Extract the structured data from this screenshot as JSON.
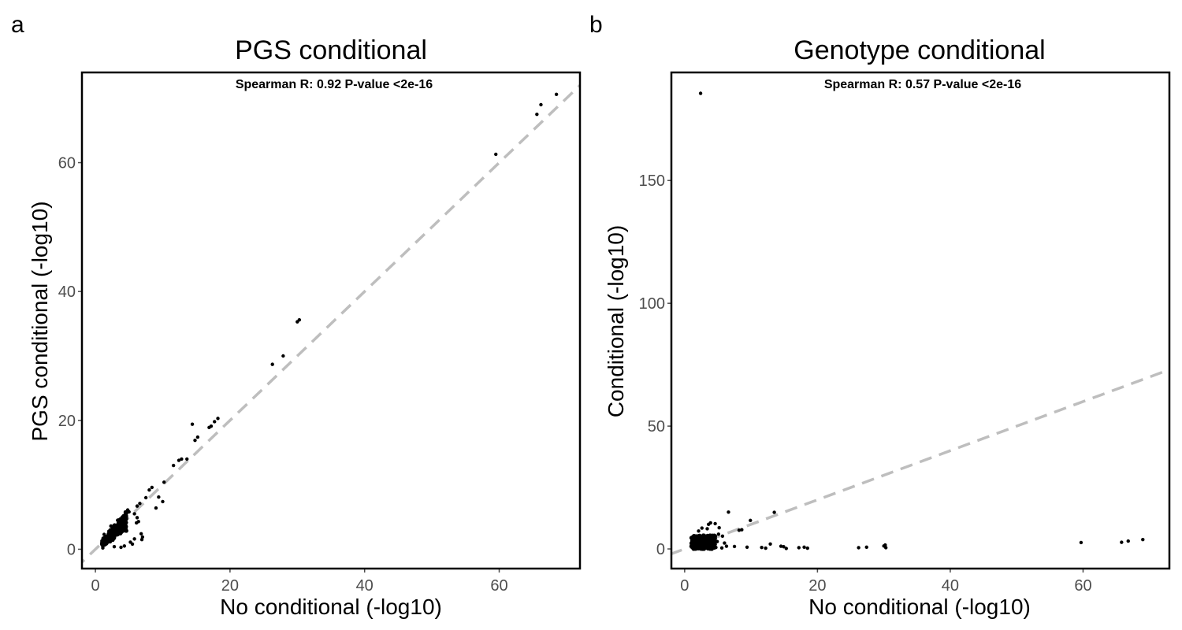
{
  "panels": [
    {
      "letter": "a",
      "title": "PGS conditional",
      "annotation": "Spearman R: 0.92 P-value <2e-16",
      "xlabel": "No conditional (-log10)",
      "ylabel": "PGS conditional (-log10)"
    },
    {
      "letter": "b",
      "title": "Genotype conditional",
      "annotation": "Spearman R: 0.57 P-value <2e-16",
      "xlabel": "No conditional (-log10)",
      "ylabel": "Conditional (-log10)"
    }
  ],
  "chart_data": [
    {
      "type": "scatter",
      "title": "PGS conditional",
      "xlabel": "No conditional (-log10)",
      "ylabel": "PGS conditional (-log10)",
      "xlim": [
        -2,
        72
      ],
      "ylim": [
        -3,
        74
      ],
      "xticks": [
        0,
        20,
        40,
        60
      ],
      "yticks": [
        0,
        20,
        40,
        60
      ],
      "grid": false,
      "reference_line": "y = x (dashed, gray)",
      "annotation": "Spearman R: 0.92 P-value <2e-16",
      "points": [
        [
          68.5,
          70.6
        ],
        [
          66.2,
          69.0
        ],
        [
          65.6,
          67.5
        ],
        [
          59.5,
          61.3
        ],
        [
          30.3,
          35.6
        ],
        [
          30.0,
          35.3
        ],
        [
          27.9,
          30.0
        ],
        [
          26.3,
          28.7
        ],
        [
          18.2,
          20.3
        ],
        [
          17.7,
          19.8
        ],
        [
          17.2,
          19.1
        ],
        [
          16.9,
          18.9
        ],
        [
          15.2,
          17.4
        ],
        [
          14.8,
          16.9
        ],
        [
          14.4,
          19.4
        ],
        [
          13.6,
          14.0
        ],
        [
          12.8,
          14.0
        ],
        [
          12.4,
          13.8
        ],
        [
          11.6,
          13.0
        ],
        [
          10.2,
          10.4
        ],
        [
          10.0,
          7.4
        ],
        [
          9.4,
          8.1
        ],
        [
          9.0,
          6.4
        ],
        [
          8.4,
          9.6
        ],
        [
          8.0,
          9.2
        ],
        [
          7.5,
          8.0
        ],
        [
          6.6,
          7.1
        ],
        [
          6.2,
          6.7
        ],
        [
          6.8,
          2.4
        ],
        [
          7.0,
          1.9
        ],
        [
          6.9,
          1.5
        ],
        [
          5.8,
          1.6
        ],
        [
          5.2,
          1.1
        ],
        [
          6.2,
          4.9
        ],
        [
          5.8,
          5.5
        ],
        [
          5.0,
          5.8
        ],
        [
          4.6,
          5.2
        ],
        [
          4.8,
          6.1
        ],
        [
          5.5,
          0.8
        ],
        [
          6.1,
          4.1
        ],
        [
          6.4,
          4.3
        ],
        [
          3.0,
          2.2
        ],
        [
          3.5,
          3.1
        ],
        [
          4.2,
          3.9
        ],
        [
          2.6,
          1.4
        ],
        [
          2.0,
          2.8
        ],
        [
          1.6,
          1.0
        ],
        [
          1.3,
          2.3
        ],
        [
          3.9,
          4.8
        ],
        [
          4.5,
          3.4
        ],
        [
          2.8,
          0.4
        ],
        [
          3.8,
          0.3
        ],
        [
          4.3,
          0.5
        ],
        [
          1.1,
          0.2
        ],
        [
          2.3,
          3.6
        ],
        [
          3.3,
          4.5
        ]
      ]
    },
    {
      "type": "scatter",
      "title": "Genotype conditional",
      "xlabel": "No conditional (-log10)",
      "ylabel": "Conditional (-log10)",
      "xlim": [
        -2,
        73
      ],
      "ylim": [
        -8,
        194
      ],
      "xticks": [
        0,
        20,
        40,
        60
      ],
      "yticks": [
        0,
        50,
        100,
        150
      ],
      "grid": false,
      "reference_line": "y = x (dashed, gray)",
      "annotation": "Spearman R: 0.57 P-value <2e-16",
      "points": [
        [
          2.4,
          185.5
        ],
        [
          69.0,
          3.8
        ],
        [
          66.8,
          3.2
        ],
        [
          65.8,
          2.7
        ],
        [
          59.7,
          2.6
        ],
        [
          30.2,
          1.6
        ],
        [
          30.0,
          1.2
        ],
        [
          30.3,
          0.5
        ],
        [
          27.4,
          0.7
        ],
        [
          26.2,
          0.5
        ],
        [
          18.5,
          0.3
        ],
        [
          18.0,
          0.7
        ],
        [
          17.2,
          0.5
        ],
        [
          15.3,
          0.2
        ],
        [
          14.9,
          0.9
        ],
        [
          14.5,
          1.1
        ],
        [
          13.5,
          14.9
        ],
        [
          12.9,
          2.0
        ],
        [
          12.2,
          0.3
        ],
        [
          11.6,
          0.6
        ],
        [
          9.9,
          11.6
        ],
        [
          9.4,
          0.7
        ],
        [
          8.6,
          7.8
        ],
        [
          8.2,
          7.6
        ],
        [
          7.5,
          1.0
        ],
        [
          6.6,
          15.0
        ],
        [
          6.3,
          1.1
        ],
        [
          6.0,
          2.4
        ],
        [
          5.7,
          5.2
        ],
        [
          5.1,
          6.0
        ],
        [
          5.2,
          8.6
        ],
        [
          4.6,
          10.3
        ],
        [
          3.9,
          10.6
        ],
        [
          3.6,
          10.0
        ],
        [
          2.6,
          8.5
        ],
        [
          2.1,
          7.3
        ],
        [
          2.3,
          1.0
        ],
        [
          3.1,
          3.7
        ],
        [
          4.0,
          4.3
        ],
        [
          4.4,
          2.2
        ],
        [
          1.6,
          2.4
        ],
        [
          1.2,
          0.7
        ],
        [
          2.8,
          5.6
        ],
        [
          3.7,
          1.5
        ],
        [
          4.7,
          0.6
        ],
        [
          1.9,
          4.4
        ],
        [
          3.4,
          8.2
        ],
        [
          4.9,
          3.0
        ],
        [
          5.6,
          0.4
        ],
        [
          2.7,
          0.9
        ]
      ]
    }
  ]
}
